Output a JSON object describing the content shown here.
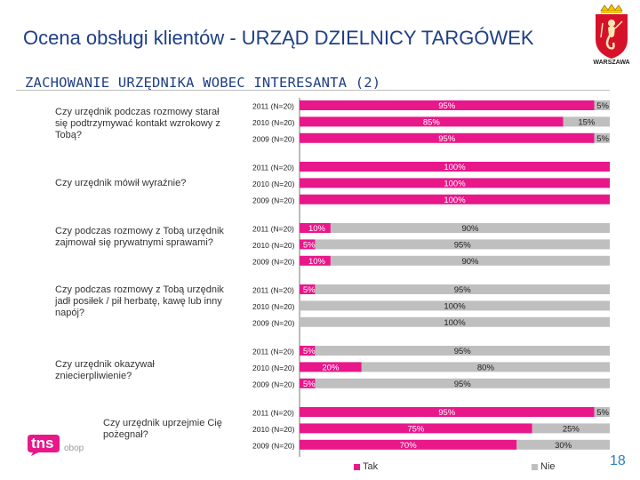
{
  "page": {
    "title": "Ocena obsługi klientów - URZĄD DZIELNICY TARGÓWEK",
    "subtitle": "ZACHOWANIE URZĘDNIKA WOBEC INTERESANTA (2)",
    "city_name": "WARSZAWA",
    "logo_text": "tns",
    "logo_sub": "obop",
    "page_number": "18"
  },
  "colors": {
    "tak": "#e8178a",
    "nie": "#bfbfbf",
    "title": "#1f3f86"
  },
  "chart_data": {
    "type": "bar",
    "orientation": "horizontal",
    "stacked": true,
    "xlim": [
      0,
      100
    ],
    "legend": {
      "position": "bottom",
      "items": [
        {
          "name": "Tak",
          "color": "#e8178a"
        },
        {
          "name": "Nie",
          "color": "#bfbfbf"
        }
      ]
    },
    "groups": [
      {
        "question": "Czy urzędnik podczas rozmowy starał się podtrzymywać kontakt wzrokowy z Tobą?",
        "rows": [
          {
            "label": "2011 (N=20)",
            "tak": 95,
            "nie": 5,
            "tak_label": "95%",
            "nie_label": "5%"
          },
          {
            "label": "2010 (N=20)",
            "tak": 85,
            "nie": 15,
            "tak_label": "85%",
            "nie_label": "15%"
          },
          {
            "label": "2009 (N=20)",
            "tak": 95,
            "nie": 5,
            "tak_label": "95%",
            "nie_label": "5%"
          }
        ]
      },
      {
        "question": "Czy urzędnik mówił wyraźnie?",
        "rows": [
          {
            "label": "2011 (N=20)",
            "tak": 100,
            "nie": 0,
            "tak_label": "100%",
            "nie_label": ""
          },
          {
            "label": "2010 (N=20)",
            "tak": 100,
            "nie": 0,
            "tak_label": "100%",
            "nie_label": ""
          },
          {
            "label": "2009 (N=20)",
            "tak": 100,
            "nie": 0,
            "tak_label": "100%",
            "nie_label": ""
          }
        ]
      },
      {
        "question": "Czy podczas rozmowy z Tobą urzędnik zajmował się prywatnymi sprawami?",
        "rows": [
          {
            "label": "2011 (N=20)",
            "tak": 10,
            "nie": 90,
            "tak_label": "10%",
            "nie_label": "90%"
          },
          {
            "label": "2010 (N=20)",
            "tak": 5,
            "nie": 95,
            "tak_label": "5%",
            "nie_label": "95%"
          },
          {
            "label": "2009 (N=20)",
            "tak": 10,
            "nie": 90,
            "tak_label": "10%",
            "nie_label": "90%"
          }
        ]
      },
      {
        "question": "Czy podczas rozmowy z Tobą urzędnik jadł posiłek / pił herbatę, kawę lub inny napój?",
        "rows": [
          {
            "label": "2011 (N=20)",
            "tak": 5,
            "nie": 95,
            "tak_label": "5%",
            "nie_label": "95%"
          },
          {
            "label": "2010 (N=20)",
            "tak": 0,
            "nie": 100,
            "tak_label": "",
            "nie_label": "100%"
          },
          {
            "label": "2009 (N=20)",
            "tak": 0,
            "nie": 100,
            "tak_label": "",
            "nie_label": "100%"
          }
        ]
      },
      {
        "question": "Czy urzędnik okazywał zniecierpliwienie?",
        "rows": [
          {
            "label": "2011 (N=20)",
            "tak": 5,
            "nie": 95,
            "tak_label": "5%",
            "nie_label": "95%"
          },
          {
            "label": "2010 (N=20)",
            "tak": 20,
            "nie": 80,
            "tak_label": "20%",
            "nie_label": "80%"
          },
          {
            "label": "2009 (N=20)",
            "tak": 5,
            "nie": 95,
            "tak_label": "5%",
            "nie_label": "95%"
          }
        ]
      },
      {
        "question": "Czy urzędnik uprzejmie Cię pożegnał?",
        "rows": [
          {
            "label": "2011 (N=20)",
            "tak": 95,
            "nie": 5,
            "tak_label": "95%",
            "nie_label": "5%"
          },
          {
            "label": "2010 (N=20)",
            "tak": 75,
            "nie": 25,
            "tak_label": "75%",
            "nie_label": "25%"
          },
          {
            "label": "2009 (N=20)",
            "tak": 70,
            "nie": 30,
            "tak_label": "70%",
            "nie_label": "30%"
          }
        ]
      }
    ]
  }
}
